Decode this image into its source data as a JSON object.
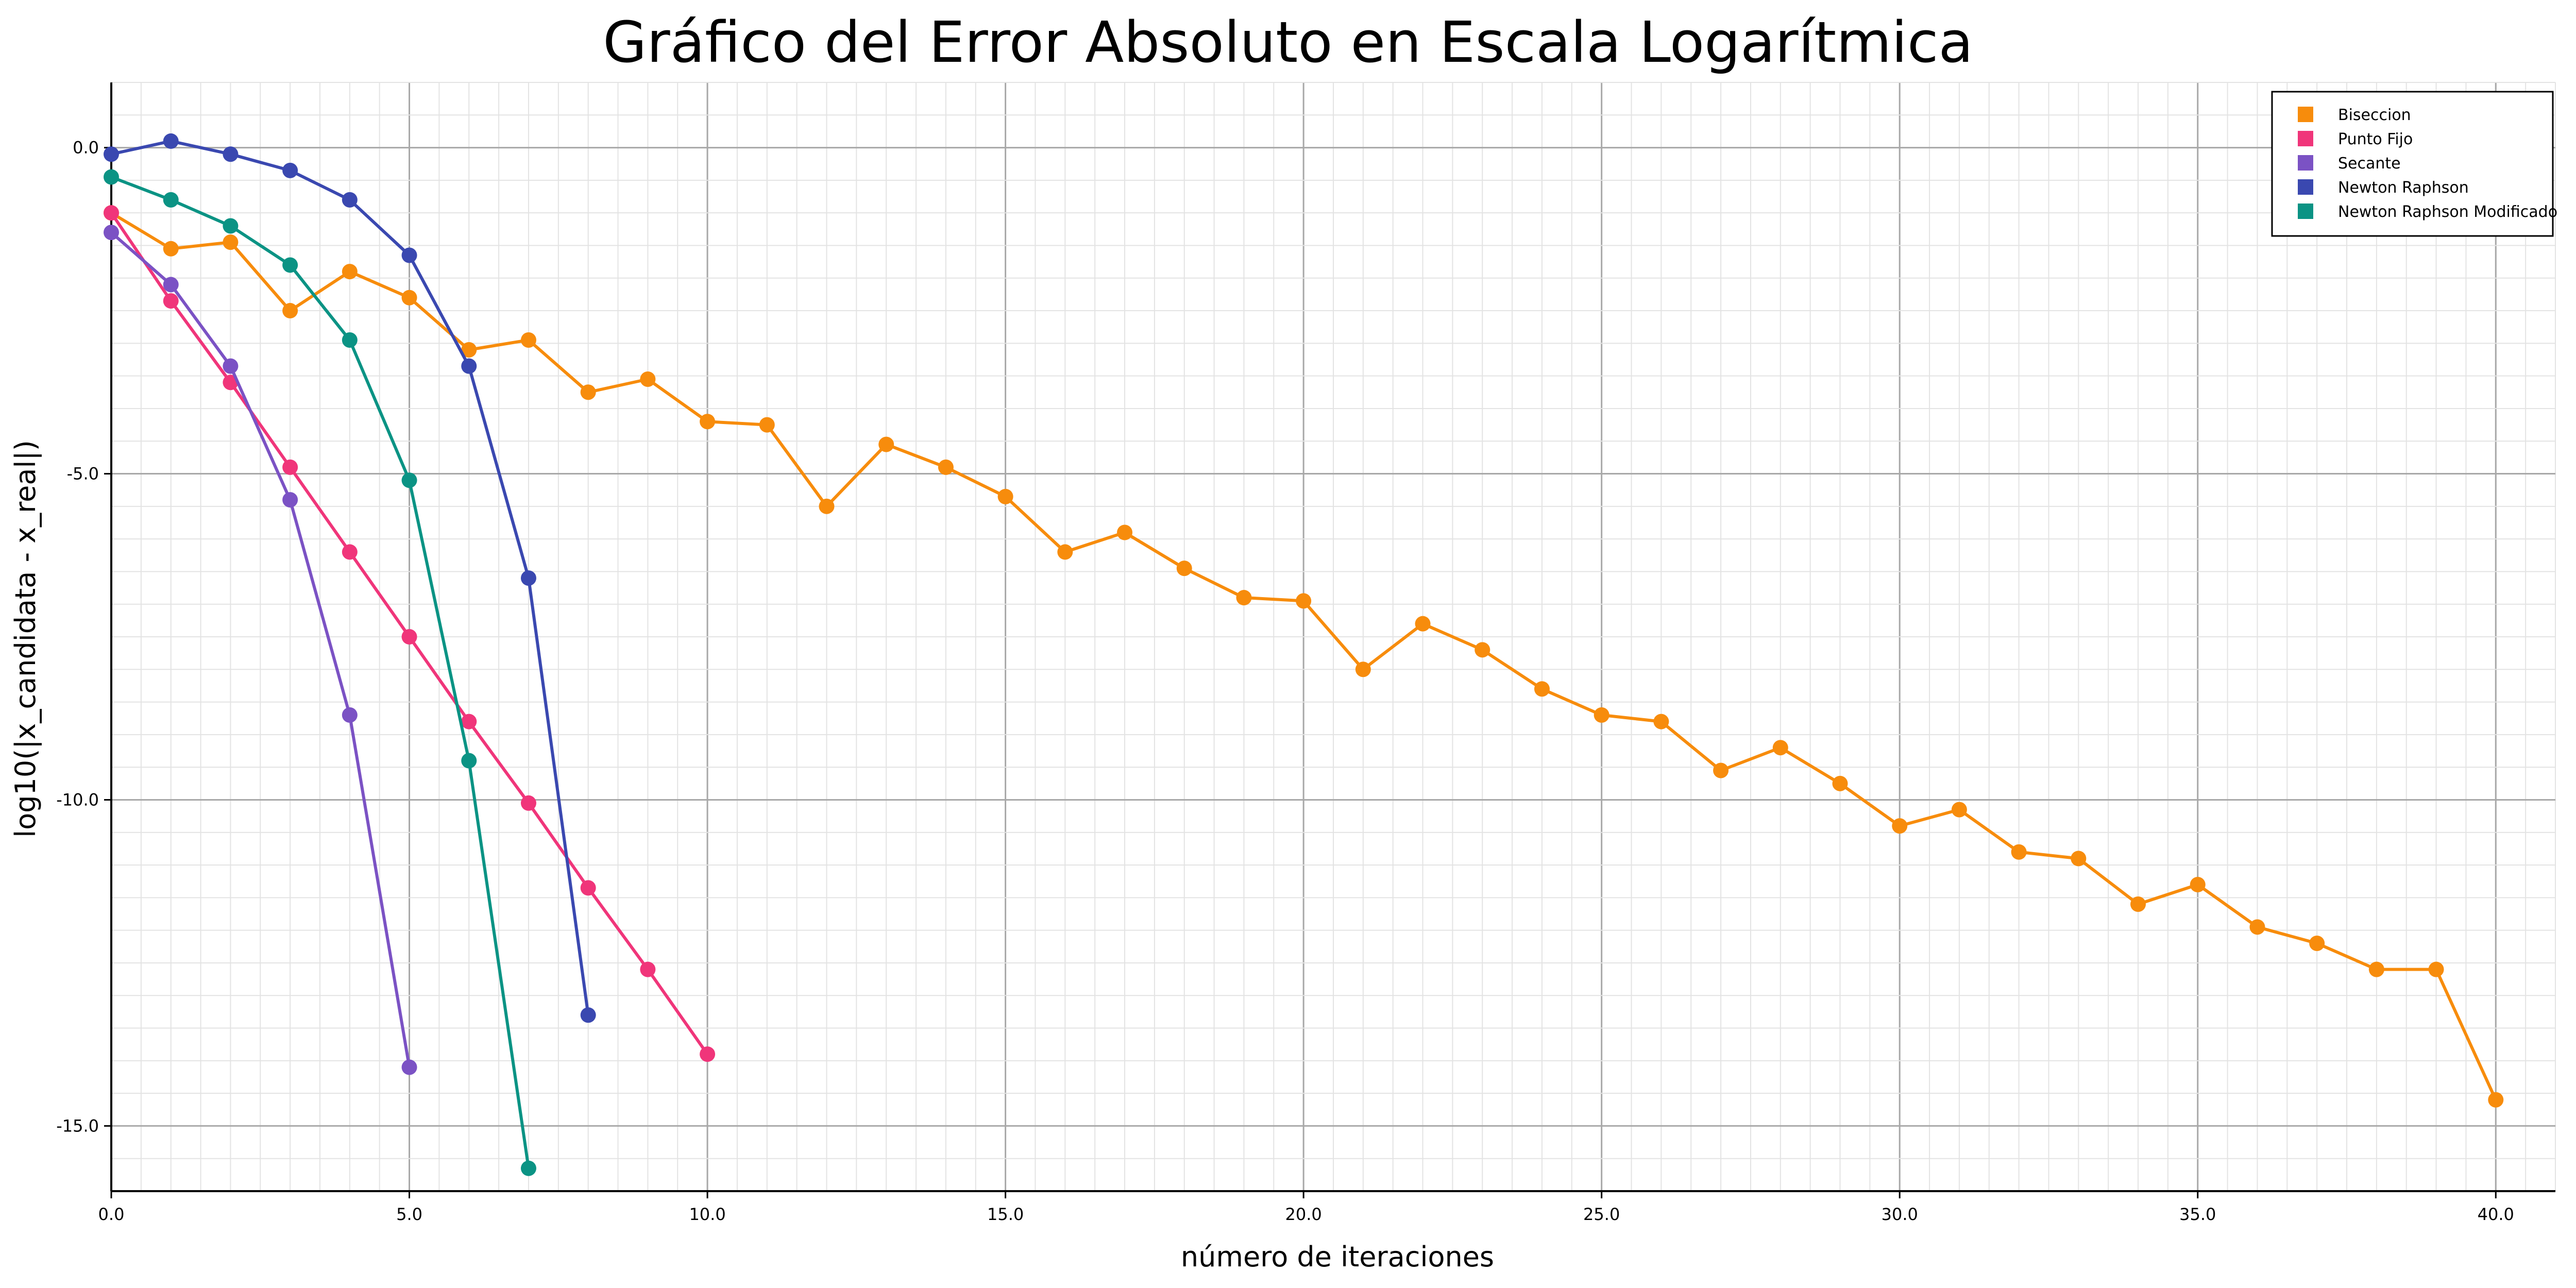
{
  "chart_data": {
    "type": "line",
    "title": "Gráfico del Error Absoluto en Escala Logarítmica",
    "xlabel": "número de iteraciones",
    "ylabel": "log10(|x_candidata - x_real|)",
    "xlim": [
      0,
      41
    ],
    "ylim": [
      -16,
      1
    ],
    "xticks": [
      0,
      5,
      10,
      15,
      20,
      25,
      30,
      35,
      40
    ],
    "xtick_labels": [
      "0.0",
      "5.0",
      "10.0",
      "15.0",
      "20.0",
      "25.0",
      "30.0",
      "35.0",
      "40.0"
    ],
    "yticks": [
      0,
      -5,
      -10,
      -15
    ],
    "ytick_labels": [
      "0.0",
      "-5.0",
      "-10.0",
      "-15.0"
    ],
    "grid": true,
    "legend_position": "top-right",
    "series": [
      {
        "name": "Biseccion",
        "color": "#f78c0c",
        "x": [
          0,
          1,
          2,
          3,
          4,
          5,
          6,
          7,
          8,
          9,
          10,
          11,
          12,
          13,
          14,
          15,
          16,
          17,
          18,
          19,
          20,
          21,
          22,
          23,
          24,
          25,
          26,
          27,
          28,
          29,
          30,
          31,
          32,
          33,
          34,
          35,
          36,
          37,
          38,
          39,
          40
        ],
        "y": [
          -1.0,
          -1.55,
          -1.45,
          -2.5,
          -1.9,
          -2.3,
          -3.1,
          -2.95,
          -3.75,
          -3.55,
          -4.2,
          -4.25,
          -5.5,
          -4.55,
          -4.9,
          -5.35,
          -6.2,
          -5.9,
          -6.45,
          -6.9,
          -6.95,
          -8.0,
          -7.3,
          -7.7,
          -8.3,
          -8.7,
          -8.8,
          -9.55,
          -9.2,
          -9.75,
          -10.4,
          -10.15,
          -10.8,
          -10.9,
          -11.6,
          -11.3,
          -11.95,
          -12.2,
          -12.6,
          -12.6,
          -14.6
        ]
      },
      {
        "name": "Punto Fijo",
        "color": "#f0357a",
        "x": [
          0,
          1,
          2,
          3,
          4,
          5,
          6,
          7,
          8,
          9,
          10
        ],
        "y": [
          -1.0,
          -2.35,
          -3.6,
          -4.9,
          -6.2,
          -7.5,
          -8.8,
          -10.05,
          -11.35,
          -12.6,
          -13.9
        ]
      },
      {
        "name": "Secante",
        "color": "#7b52c4",
        "x": [
          0,
          1,
          2,
          3,
          4,
          5
        ],
        "y": [
          -1.3,
          -2.1,
          -3.35,
          -5.4,
          -8.7,
          -14.1
        ]
      },
      {
        "name": "Newton Raphson",
        "color": "#3a48b0",
        "x": [
          0,
          1,
          2,
          3,
          4,
          5,
          6,
          7,
          8
        ],
        "y": [
          -0.1,
          0.1,
          -0.1,
          -0.35,
          -0.8,
          -1.65,
          -3.35,
          -6.6,
          -13.3
        ]
      },
      {
        "name": "Newton Raphson Modificado",
        "color": "#0b9384",
        "x": [
          0,
          1,
          2,
          3,
          4,
          5,
          6,
          7
        ],
        "y": [
          -0.45,
          -0.8,
          -1.2,
          -1.8,
          -2.95,
          -5.1,
          -9.4,
          -15.65
        ]
      }
    ]
  }
}
